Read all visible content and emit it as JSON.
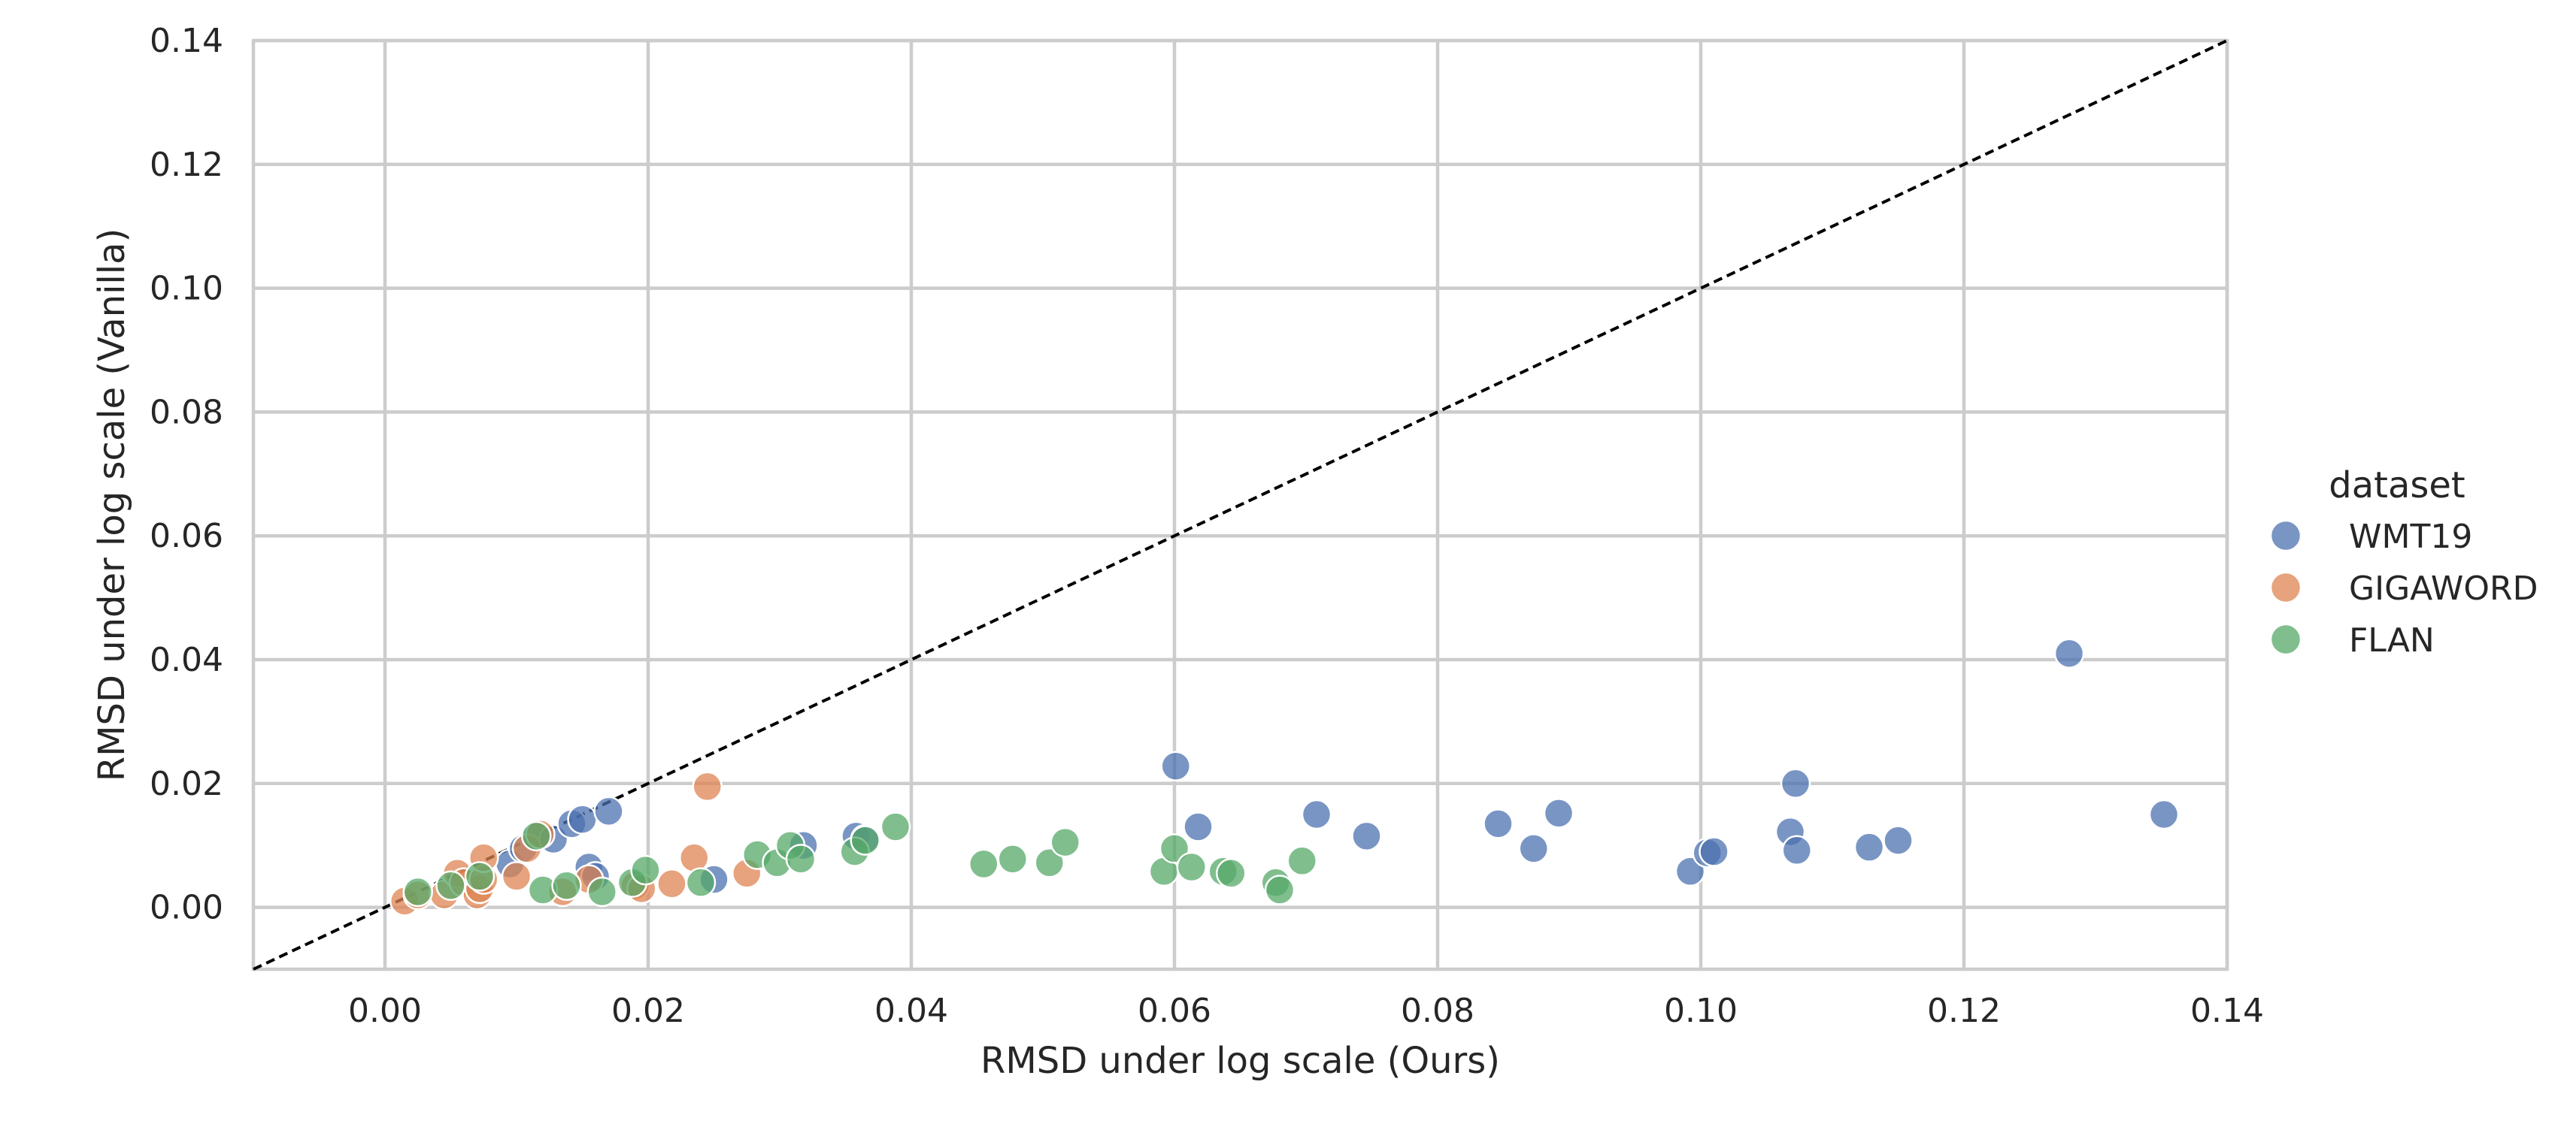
{
  "chart_data": {
    "type": "scatter",
    "xlabel": "RMSD under log scale (Ours)",
    "ylabel": "RMSD under log scale (Vanilla)",
    "xlim": [
      -0.01,
      0.14
    ],
    "ylim": [
      -0.01,
      0.14
    ],
    "xticks": [
      "0.00",
      "0.02",
      "0.04",
      "0.06",
      "0.08",
      "0.10",
      "0.12",
      "0.14"
    ],
    "yticks": [
      "0.00",
      "0.02",
      "0.04",
      "0.06",
      "0.08",
      "0.10",
      "0.12",
      "0.14"
    ],
    "grid": true,
    "reference_line": "y = x",
    "legend": {
      "title": "dataset",
      "placement": "outside-right"
    },
    "series": [
      {
        "name": "WMT19",
        "color": "#4c72b0",
        "points": [
          [
            0.0095,
            0.007
          ],
          [
            0.0105,
            0.0095
          ],
          [
            0.0115,
            0.0115
          ],
          [
            0.0128,
            0.011
          ],
          [
            0.0142,
            0.0135
          ],
          [
            0.015,
            0.0142
          ],
          [
            0.017,
            0.0155
          ],
          [
            0.0155,
            0.0065
          ],
          [
            0.016,
            0.005
          ],
          [
            0.025,
            0.0045
          ],
          [
            0.0318,
            0.01
          ],
          [
            0.0358,
            0.0115
          ],
          [
            0.0365,
            0.011
          ],
          [
            0.0601,
            0.0228
          ],
          [
            0.0618,
            0.013
          ],
          [
            0.0708,
            0.015
          ],
          [
            0.0746,
            0.0115
          ],
          [
            0.0846,
            0.0135
          ],
          [
            0.0873,
            0.0095
          ],
          [
            0.0892,
            0.0152
          ],
          [
            0.0992,
            0.0058
          ],
          [
            0.1005,
            0.0088
          ],
          [
            0.101,
            0.009
          ],
          [
            0.1068,
            0.0122
          ],
          [
            0.1072,
            0.02
          ],
          [
            0.1073,
            0.0092
          ],
          [
            0.1128,
            0.0097
          ],
          [
            0.115,
            0.0108
          ],
          [
            0.128,
            0.041
          ],
          [
            0.1352,
            0.015
          ]
        ]
      },
      {
        "name": "GIGAWORD",
        "color": "#dd8452",
        "points": [
          [
            0.0015,
            0.001
          ],
          [
            0.0025,
            0.002
          ],
          [
            0.0045,
            0.002
          ],
          [
            0.0055,
            0.0055
          ],
          [
            0.006,
            0.004
          ],
          [
            0.007,
            0.002
          ],
          [
            0.0072,
            0.003
          ],
          [
            0.0075,
            0.0045
          ],
          [
            0.0075,
            0.008
          ],
          [
            0.01,
            0.005
          ],
          [
            0.0108,
            0.0095
          ],
          [
            0.0118,
            0.0118
          ],
          [
            0.0135,
            0.0025
          ],
          [
            0.0155,
            0.0045
          ],
          [
            0.019,
            0.0035
          ],
          [
            0.0195,
            0.003
          ],
          [
            0.0218,
            0.0038
          ],
          [
            0.0235,
            0.008
          ],
          [
            0.0245,
            0.0195
          ],
          [
            0.0275,
            0.0055
          ]
        ]
      },
      {
        "name": "FLAN",
        "color": "#55a868",
        "points": [
          [
            0.0025,
            0.0025
          ],
          [
            0.005,
            0.0035
          ],
          [
            0.0072,
            0.005
          ],
          [
            0.0115,
            0.0115
          ],
          [
            0.012,
            0.0028
          ],
          [
            0.0138,
            0.0035
          ],
          [
            0.0165,
            0.0025
          ],
          [
            0.0188,
            0.004
          ],
          [
            0.0198,
            0.006
          ],
          [
            0.024,
            0.004
          ],
          [
            0.0283,
            0.0085
          ],
          [
            0.0298,
            0.0072
          ],
          [
            0.0308,
            0.01
          ],
          [
            0.0316,
            0.0078
          ],
          [
            0.0357,
            0.009
          ],
          [
            0.0365,
            0.0108
          ],
          [
            0.0388,
            0.013
          ],
          [
            0.0455,
            0.007
          ],
          [
            0.0477,
            0.0078
          ],
          [
            0.0505,
            0.0072
          ],
          [
            0.0517,
            0.0105
          ],
          [
            0.0592,
            0.0058
          ],
          [
            0.06,
            0.0095
          ],
          [
            0.0613,
            0.0065
          ],
          [
            0.0637,
            0.0058
          ],
          [
            0.0643,
            0.0055
          ],
          [
            0.0677,
            0.004
          ],
          [
            0.068,
            0.0028
          ],
          [
            0.0697,
            0.0075
          ]
        ]
      }
    ]
  }
}
